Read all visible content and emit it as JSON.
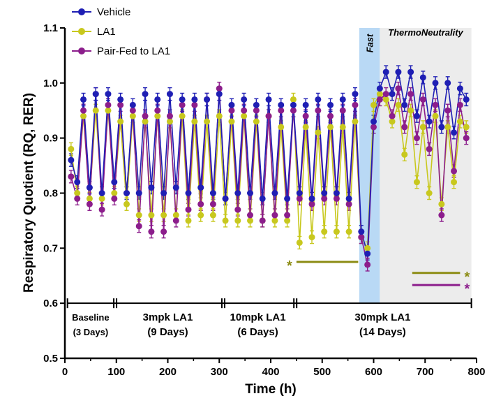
{
  "chart_data": {
    "type": "scatter",
    "title": "",
    "xlabel": "Time (h)",
    "ylabel": "Respiratory Quotient  (RQ, RER)",
    "xlim": [
      0,
      800
    ],
    "ylim": [
      0.5,
      1.1
    ],
    "x_ticks": [
      "0",
      "100",
      "200",
      "300",
      "400",
      "500",
      "600",
      "700",
      "800"
    ],
    "y_ticks": [
      "0.5",
      "0.6",
      "0.7",
      "0.8",
      "0.9",
      "1.0",
      "1.1"
    ],
    "grid": false,
    "legend_position": "top-left",
    "series": [
      {
        "name": "Vehicle",
        "color": "#1f1fb4",
        "x": [
          12,
          24,
          36,
          48,
          60,
          72,
          84,
          96,
          108,
          120,
          132,
          144,
          156,
          168,
          180,
          192,
          204,
          216,
          228,
          240,
          252,
          264,
          276,
          288,
          300,
          312,
          324,
          336,
          348,
          360,
          372,
          384,
          396,
          408,
          420,
          432,
          444,
          456,
          468,
          480,
          492,
          504,
          516,
          528,
          540,
          552,
          564,
          576,
          588,
          600,
          612,
          624,
          636,
          648,
          660,
          672,
          684,
          696,
          708,
          720,
          732,
          744,
          756,
          768,
          780
        ],
        "y": [
          0.86,
          0.82,
          0.97,
          0.81,
          0.98,
          0.8,
          0.98,
          0.82,
          0.97,
          0.8,
          0.96,
          0.8,
          0.98,
          0.81,
          0.97,
          0.8,
          0.98,
          0.81,
          0.97,
          0.8,
          0.97,
          0.81,
          0.97,
          0.8,
          0.98,
          0.79,
          0.96,
          0.8,
          0.97,
          0.8,
          0.96,
          0.79,
          0.97,
          0.8,
          0.96,
          0.79,
          0.96,
          0.8,
          0.96,
          0.79,
          0.97,
          0.8,
          0.96,
          0.8,
          0.97,
          0.79,
          0.98,
          0.73,
          0.69,
          0.93,
          0.99,
          1.02,
          0.98,
          1.02,
          0.96,
          1.02,
          0.94,
          1.01,
          0.93,
          1.0,
          0.92,
          1.0,
          0.91,
          0.99,
          0.97
        ]
      },
      {
        "name": "LA1",
        "color": "#c8c81e",
        "x": [
          12,
          24,
          36,
          48,
          60,
          72,
          84,
          96,
          108,
          120,
          132,
          144,
          156,
          168,
          180,
          192,
          204,
          216,
          228,
          240,
          252,
          264,
          276,
          288,
          300,
          312,
          324,
          336,
          348,
          360,
          372,
          384,
          396,
          408,
          420,
          432,
          444,
          456,
          468,
          480,
          492,
          504,
          516,
          528,
          540,
          552,
          564,
          576,
          588,
          600,
          612,
          624,
          636,
          648,
          660,
          672,
          684,
          696,
          708,
          720,
          732,
          744,
          756,
          768,
          780
        ],
        "y": [
          0.88,
          0.8,
          0.94,
          0.79,
          0.95,
          0.79,
          0.95,
          0.8,
          0.93,
          0.78,
          0.94,
          0.76,
          0.93,
          0.76,
          0.94,
          0.76,
          0.93,
          0.76,
          0.94,
          0.75,
          0.93,
          0.76,
          0.93,
          0.76,
          0.94,
          0.75,
          0.93,
          0.75,
          0.94,
          0.75,
          0.93,
          0.75,
          0.94,
          0.75,
          0.92,
          0.75,
          0.97,
          0.71,
          0.92,
          0.72,
          0.91,
          0.73,
          0.92,
          0.73,
          0.92,
          0.73,
          0.93,
          0.72,
          0.7,
          0.96,
          0.98,
          0.97,
          0.93,
          0.96,
          0.87,
          0.95,
          0.82,
          0.92,
          0.8,
          0.94,
          0.78,
          0.92,
          0.82,
          0.93,
          0.92
        ]
      },
      {
        "name": "Pair-Fed to LA1",
        "color": "#8c1e8c",
        "x": [
          12,
          24,
          36,
          48,
          60,
          72,
          84,
          96,
          108,
          120,
          132,
          144,
          156,
          168,
          180,
          192,
          204,
          216,
          228,
          240,
          252,
          264,
          276,
          288,
          300,
          312,
          324,
          336,
          348,
          360,
          372,
          384,
          396,
          408,
          420,
          432,
          444,
          456,
          468,
          480,
          492,
          504,
          516,
          528,
          540,
          552,
          564,
          576,
          588,
          600,
          612,
          624,
          636,
          648,
          660,
          672,
          684,
          696,
          708,
          720,
          732,
          744,
          756,
          768,
          780
        ],
        "y": [
          0.83,
          0.79,
          0.95,
          0.78,
          0.98,
          0.77,
          0.96,
          0.79,
          0.96,
          0.8,
          0.95,
          0.74,
          0.94,
          0.73,
          0.95,
          0.73,
          0.94,
          0.75,
          0.96,
          0.77,
          0.96,
          0.78,
          0.97,
          0.78,
          0.99,
          0.79,
          0.95,
          0.77,
          0.95,
          0.76,
          0.95,
          0.75,
          0.94,
          0.76,
          0.95,
          0.76,
          0.95,
          0.79,
          0.94,
          0.78,
          0.95,
          0.79,
          0.94,
          0.79,
          0.95,
          0.78,
          0.96,
          0.72,
          0.67,
          0.92,
          0.97,
          0.98,
          0.94,
          0.99,
          0.92,
          0.98,
          0.9,
          0.97,
          0.88,
          0.96,
          0.76,
          0.95,
          0.84,
          0.96,
          0.9
        ]
      }
    ],
    "regions": [
      {
        "label": "Fast",
        "x_start": 572,
        "x_end": 612,
        "color": "#b9d9f5"
      },
      {
        "label": "ThermoNeutrality",
        "x_start": 612,
        "x_end": 790,
        "color": "#ececec"
      }
    ],
    "phases": [
      {
        "label_line1": "Baseline",
        "label_line2": "(3 Days)",
        "x_start": 5,
        "x_end": 95
      },
      {
        "label_line1": "3mpk  LA1",
        "label_line2": "(9 Days)",
        "x_start": 95,
        "x_end": 305
      },
      {
        "label_line1": "10mpk LA1",
        "label_line2": "(6 Days)",
        "x_start": 305,
        "x_end": 445
      },
      {
        "label_line1": "30mpk  LA1",
        "label_line2": "(14 Days)",
        "x_start": 445,
        "x_end": 790
      }
    ],
    "annotations": [
      {
        "label": "*",
        "color": "#8c8c14",
        "x_start": 450,
        "x_end": 570,
        "y": 0.675,
        "star_side": "left"
      },
      {
        "label": "*",
        "color": "#8c8c14",
        "x_start": 675,
        "x_end": 768,
        "y": 0.655,
        "star_side": "right"
      },
      {
        "label": "*",
        "color": "#8c1e8c",
        "x_start": 675,
        "x_end": 768,
        "y": 0.633,
        "star_side": "right"
      }
    ]
  }
}
